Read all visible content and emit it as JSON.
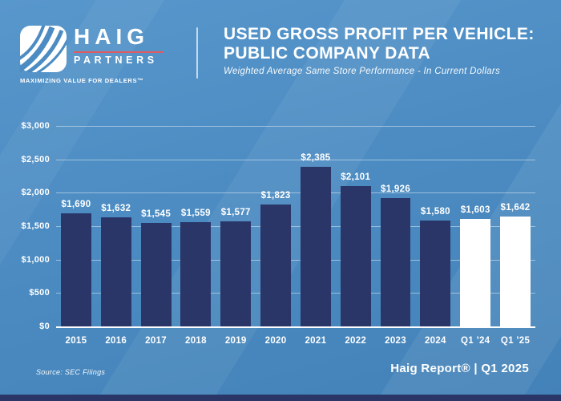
{
  "header": {
    "logo": {
      "name": "HAIG",
      "sub": "PARTNERS",
      "tagline": "MAXIMIZING VALUE FOR DEALERS™",
      "accent_color": "#e25a60"
    },
    "title_line1": "USED GROSS PROFIT PER VEHICLE:",
    "title_line2": "PUBLIC COMPANY DATA",
    "subtitle": "Weighted Average Same Store Performance - In Current Dollars"
  },
  "chart_data": {
    "type": "bar",
    "title": "Used Gross Profit Per Vehicle: Public Company Data",
    "subtitle": "Weighted Average Same Store Performance - In Current Dollars",
    "categories": [
      "2015",
      "2016",
      "2017",
      "2018",
      "2019",
      "2020",
      "2021",
      "2022",
      "2023",
      "2024",
      "Q1 ’24",
      "Q1 ’25"
    ],
    "values": [
      1690,
      1632,
      1545,
      1559,
      1577,
      1823,
      2385,
      2101,
      1926,
      1580,
      1603,
      1642
    ],
    "value_labels": [
      "$1,690",
      "$1,632",
      "$1,545",
      "$1,559",
      "$1,577",
      "$1,823",
      "$2,385",
      "$2,101",
      "$1,926",
      "$1,580",
      "$1,603",
      "$1,642"
    ],
    "highlight_indexes": [
      10,
      11
    ],
    "xlabel": "",
    "ylabel": "",
    "ylim": [
      0,
      3000
    ],
    "y_ticks": [
      "$3,000",
      "$2,500",
      "$2,000",
      "$1,500",
      "$1,000",
      "$500",
      "$0"
    ],
    "grid": true,
    "legend": false,
    "bar_color": "#2a3568",
    "highlight_color": "#ffffff",
    "value_label_color": "#ffffff"
  },
  "footer": {
    "source": "Source: SEC Filings",
    "report": "Haig Report® | Q1 2025"
  },
  "colors": {
    "background_top": "#5897cc",
    "background_bottom": "#4382b8",
    "bar_navy": "#2a3568",
    "bottom_strip": "#2a3568",
    "gridline": "rgba(255,255,255,0.45)",
    "logo_red": "#e25a60"
  }
}
